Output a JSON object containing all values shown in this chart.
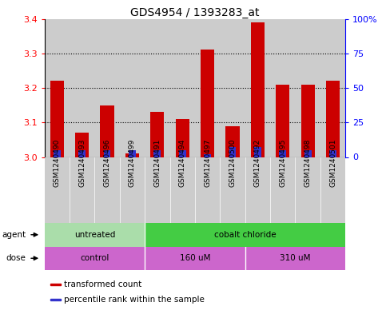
{
  "title": "GDS4954 / 1393283_at",
  "samples": [
    "GSM1240490",
    "GSM1240493",
    "GSM1240496",
    "GSM1240499",
    "GSM1240491",
    "GSM1240494",
    "GSM1240497",
    "GSM1240500",
    "GSM1240492",
    "GSM1240495",
    "GSM1240498",
    "GSM1240501"
  ],
  "red_values": [
    3.22,
    3.07,
    3.15,
    3.01,
    3.13,
    3.11,
    3.31,
    3.09,
    3.39,
    3.21,
    3.21,
    3.22
  ],
  "blue_pct": [
    5,
    5,
    5,
    5,
    5,
    5,
    2,
    7,
    7,
    5,
    5,
    5
  ],
  "ymin": 3.0,
  "ymax": 3.4,
  "yticks_left": [
    3.0,
    3.1,
    3.2,
    3.3,
    3.4
  ],
  "yticks_right": [
    0,
    25,
    50,
    75,
    100
  ],
  "bar_width": 0.55,
  "blue_bar_width": 0.28,
  "red_color": "#cc0000",
  "blue_color": "#3333cc",
  "bg_color": "#cccccc",
  "chart_bg": "#ffffff",
  "agent_untreated_color": "#aaddaa",
  "agent_cobalt_color": "#44cc44",
  "dose_color": "#cc66cc",
  "agent_labels": [
    "untreated",
    "cobalt chloride"
  ],
  "dose_labels": [
    "control",
    "160 uM",
    "310 uM"
  ],
  "legend_red": "transformed count",
  "legend_blue": "percentile rank within the sample",
  "title_fontsize": 10,
  "label_fontsize": 7.5,
  "tick_fontsize": 8,
  "sample_fontsize": 6.5
}
